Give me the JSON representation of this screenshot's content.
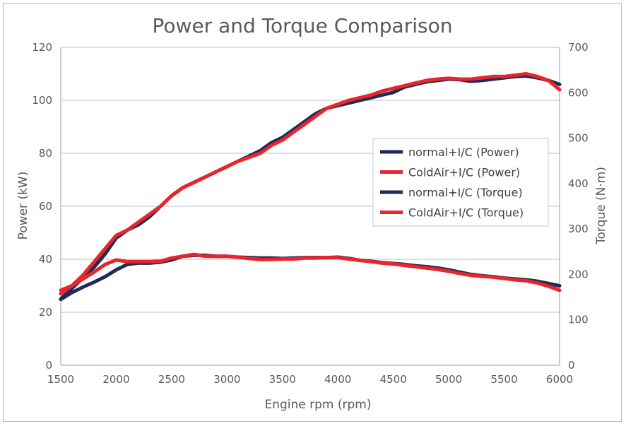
{
  "chart_data": {
    "type": "line",
    "title": "Power and Torque Comparison",
    "xlabel": "Engine rpm (rpm)",
    "ylabel_left": "Power (kW)",
    "ylabel_right": "Torque (N·m)",
    "xlim": [
      1500,
      6000
    ],
    "ylim_left": [
      0,
      120
    ],
    "ylim_right": [
      0,
      700
    ],
    "x_ticks": [
      "1500",
      "2000",
      "2500",
      "3000",
      "3500",
      "4000",
      "4500",
      "5000",
      "5500",
      "6000"
    ],
    "y_ticks_left": [
      "0",
      "20",
      "40",
      "60",
      "80",
      "100",
      "120"
    ],
    "y_ticks_right": [
      "0",
      "100",
      "200",
      "300",
      "400",
      "500",
      "600",
      "700"
    ],
    "grid": "horizontal",
    "legend_position": "right",
    "colors": {
      "navy": "#1f2a5a",
      "red": "#e8252a"
    },
    "series": [
      {
        "name": "normal+I/C (Power)",
        "axis": "left",
        "color": "#1f2a5a",
        "x": [
          1500,
          1600,
          1700,
          1800,
          1900,
          2000,
          2100,
          2200,
          2300,
          2400,
          2500,
          2600,
          2700,
          2800,
          2900,
          3000,
          3100,
          3200,
          3300,
          3400,
          3500,
          3600,
          3700,
          3800,
          3900,
          4000,
          4100,
          4200,
          4300,
          4400,
          4500,
          4600,
          4700,
          4800,
          4900,
          5000,
          5100,
          5200,
          5300,
          5400,
          5500,
          5600,
          5700,
          5800,
          5900,
          6000
        ],
        "values": [
          25,
          29,
          33,
          37,
          42,
          48,
          51,
          53,
          56,
          60,
          64,
          67,
          69,
          71,
          73,
          75,
          77,
          79,
          81,
          84,
          86,
          89,
          92,
          95,
          97,
          98,
          99,
          100,
          101,
          102,
          103,
          105,
          106,
          107,
          107.5,
          108,
          107.8,
          107.2,
          107.5,
          108,
          108.5,
          109,
          109.2,
          108.5,
          107.5,
          106
        ]
      },
      {
        "name": "ColdAir+I/C (Power)",
        "axis": "left",
        "color": "#e8252a",
        "x": [
          1500,
          1600,
          1700,
          1800,
          1900,
          2000,
          2100,
          2200,
          2300,
          2400,
          2500,
          2600,
          2700,
          2800,
          2900,
          3000,
          3100,
          3200,
          3300,
          3400,
          3500,
          3600,
          3700,
          3800,
          3900,
          4000,
          4100,
          4200,
          4300,
          4400,
          4500,
          4600,
          4700,
          4800,
          4900,
          5000,
          5100,
          5200,
          5300,
          5400,
          5500,
          5600,
          5700,
          5800,
          5900,
          6000
        ],
        "values": [
          27,
          30,
          34,
          39,
          44,
          49,
          51,
          54,
          57,
          60,
          64,
          67,
          69,
          71,
          73,
          75,
          77,
          78.5,
          80,
          83,
          85,
          88,
          91,
          94,
          97,
          98.5,
          100,
          101,
          102,
          103.5,
          104.5,
          105.5,
          106.5,
          107.5,
          108,
          108.3,
          108,
          108,
          108.5,
          109,
          109,
          109.5,
          110,
          109,
          107.5,
          104
        ]
      },
      {
        "name": "normal+I/C (Torque)",
        "axis": "right",
        "color": "#1f2a5a",
        "x": [
          1500,
          1600,
          1700,
          1800,
          1900,
          2000,
          2100,
          2200,
          2300,
          2400,
          2500,
          2600,
          2700,
          2800,
          2900,
          3000,
          3100,
          3200,
          3300,
          3400,
          3500,
          3600,
          3700,
          3800,
          3900,
          4000,
          4100,
          4200,
          4300,
          4400,
          4500,
          4600,
          4700,
          4800,
          4900,
          5000,
          5100,
          5200,
          5300,
          5400,
          5500,
          5600,
          5700,
          5800,
          5900,
          6000
        ],
        "values": [
          145,
          160,
          172,
          183,
          195,
          210,
          222,
          225,
          225,
          227,
          232,
          240,
          242,
          242,
          240,
          240,
          238,
          237,
          236,
          236,
          235,
          236,
          237,
          237,
          237,
          238,
          235,
          231,
          229,
          226,
          224,
          222,
          219,
          217,
          214,
          210,
          205,
          200,
          197,
          195,
          192,
          190,
          188,
          185,
          180,
          175
        ]
      },
      {
        "name": "ColdAir+I/C (Torque)",
        "axis": "right",
        "color": "#e8252a",
        "x": [
          1500,
          1600,
          1700,
          1800,
          1900,
          2000,
          2100,
          2200,
          2300,
          2400,
          2500,
          2600,
          2700,
          2800,
          2900,
          3000,
          3100,
          3200,
          3300,
          3400,
          3500,
          3600,
          3700,
          3800,
          3900,
          4000,
          4100,
          4200,
          4300,
          4400,
          4500,
          4600,
          4700,
          4800,
          4900,
          5000,
          5100,
          5200,
          5300,
          5400,
          5500,
          5600,
          5700,
          5800,
          5900,
          6000
        ],
        "values": [
          165,
          175,
          190,
          205,
          222,
          232,
          228,
          228,
          228,
          229,
          236,
          240,
          244,
          240,
          240,
          240,
          238,
          235,
          233,
          233,
          234,
          234,
          236,
          236,
          237,
          237,
          234,
          231,
          228,
          225,
          223,
          220,
          217,
          214,
          211,
          207,
          202,
          198,
          196,
          194,
          191,
          188,
          186,
          181,
          174,
          165
        ]
      }
    ]
  }
}
